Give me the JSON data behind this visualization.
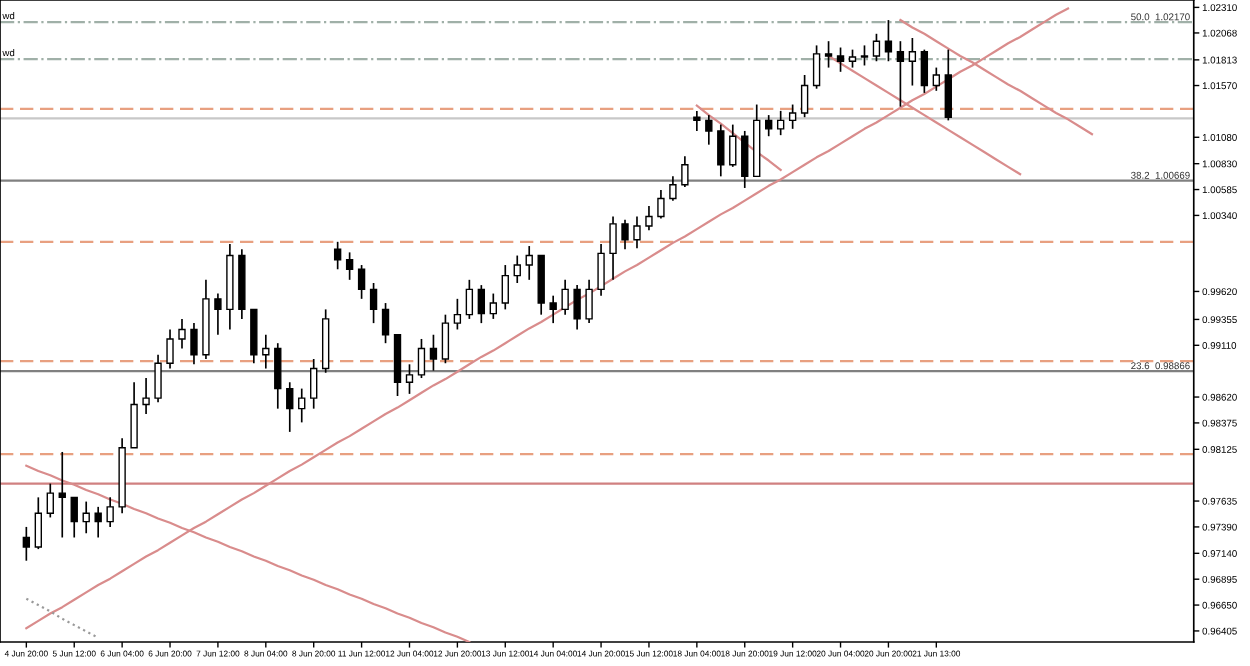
{
  "chart_data": {
    "type": "candlestick",
    "categories": [
      "4 Jun 20:00",
      null,
      null,
      null,
      "5 Jun 12:00",
      null,
      null,
      null,
      "6 Jun 04:00",
      null,
      null,
      null,
      "6 Jun 20:00",
      null,
      null,
      null,
      "7 Jun 12:00",
      null,
      null,
      null,
      "8 Jun 04:00",
      null,
      null,
      null,
      "8 Jun 20:00",
      null,
      null,
      null,
      "11 Jun 12:00",
      null,
      null,
      null,
      "12 Jun 04:00",
      null,
      null,
      null,
      "12 Jun 20:00",
      null,
      null,
      null,
      "13 Jun 12:00",
      null,
      null,
      null,
      "14 Jun 04:00",
      null,
      null,
      null,
      "14 Jun 20:00",
      null,
      null,
      null,
      "15 Jun 12:00",
      null,
      null,
      null,
      "18 Jun 04:00",
      null,
      null,
      null,
      "18 Jun 20:00",
      null,
      null,
      null,
      "19 Jun 12:00",
      null,
      null,
      null,
      "20 Jun 04:00",
      null,
      null,
      null,
      "20 Jun 20:00",
      null,
      null,
      null,
      "21 Jun 13:00",
      null,
      null,
      null,
      null,
      null,
      null,
      null,
      null,
      null,
      null,
      null,
      null,
      null,
      null,
      null,
      null,
      null,
      null,
      null,
      null,
      null
    ],
    "ohlc": [
      [
        0.9729,
        0.9739,
        0.9707,
        0.972
      ],
      [
        0.972,
        0.9767,
        0.9718,
        0.9752
      ],
      [
        0.9752,
        0.978,
        0.9748,
        0.9771
      ],
      [
        0.9771,
        0.981,
        0.9729,
        0.9767
      ],
      [
        0.9767,
        0.9767,
        0.9729,
        0.9744
      ],
      [
        0.9744,
        0.9763,
        0.9733,
        0.9752
      ],
      [
        0.9752,
        0.9758,
        0.9729,
        0.9744
      ],
      [
        0.9744,
        0.9767,
        0.9739,
        0.9758
      ],
      [
        0.9758,
        0.9823,
        0.9752,
        0.9814
      ],
      [
        0.9814,
        0.9876,
        0.9814,
        0.9855
      ],
      [
        0.9855,
        0.988,
        0.9846,
        0.9861
      ],
      [
        0.9861,
        0.9902,
        0.9857,
        0.9894
      ],
      [
        0.9894,
        0.9926,
        0.9889,
        0.9917
      ],
      [
        0.9917,
        0.9936,
        0.9908,
        0.9926
      ],
      [
        0.9926,
        0.9932,
        0.9893,
        0.9902
      ],
      [
        0.9902,
        0.9973,
        0.9898,
        0.9955
      ],
      [
        0.9955,
        0.996,
        0.9921,
        0.9945
      ],
      [
        0.9945,
        1.0007,
        0.9926,
        0.9996
      ],
      [
        0.9996,
        1.0002,
        0.9936,
        0.9945
      ],
      [
        0.9945,
        0.9945,
        0.9894,
        0.9902
      ],
      [
        0.9902,
        0.9921,
        0.9889,
        0.9908
      ],
      [
        0.9908,
        0.9913,
        0.9851,
        0.987
      ],
      [
        0.987,
        0.9876,
        0.9829,
        0.9851
      ],
      [
        0.9851,
        0.987,
        0.9838,
        0.9861
      ],
      [
        0.9861,
        0.9898,
        0.9851,
        0.9889
      ],
      [
        0.9889,
        0.9945,
        0.9885,
        0.9936
      ],
      [
        1.0002,
        1.0009,
        0.9983,
        0.9992
      ],
      [
        0.9992,
        0.9999,
        0.9973,
        0.9983
      ],
      [
        0.9983,
        0.9987,
        0.9955,
        0.9964
      ],
      [
        0.9964,
        0.997,
        0.9932,
        0.9945
      ],
      [
        0.9945,
        0.9951,
        0.9913,
        0.9921
      ],
      [
        0.9921,
        0.9921,
        0.9863,
        0.9876
      ],
      [
        0.9876,
        0.9893,
        0.9865,
        0.9883
      ],
      [
        0.9883,
        0.9917,
        0.988,
        0.9908
      ],
      [
        0.9908,
        0.9921,
        0.9887,
        0.9898
      ],
      [
        0.9898,
        0.994,
        0.9894,
        0.9932
      ],
      [
        0.9932,
        0.9955,
        0.9926,
        0.994
      ],
      [
        0.994,
        0.9973,
        0.9936,
        0.9964
      ],
      [
        0.9964,
        0.9968,
        0.9932,
        0.9941
      ],
      [
        0.9941,
        0.996,
        0.9936,
        0.9951
      ],
      [
        0.9951,
        0.9987,
        0.9945,
        0.9977
      ],
      [
        0.9977,
        0.9996,
        0.997,
        0.9987
      ],
      [
        0.9987,
        1.0005,
        0.9973,
        0.9996
      ],
      [
        0.9996,
        0.9996,
        0.994,
        0.9951
      ],
      [
        0.9951,
        0.9958,
        0.9932,
        0.9945
      ],
      [
        0.9945,
        0.9973,
        0.994,
        0.9964
      ],
      [
        0.9964,
        0.9968,
        0.9926,
        0.9936
      ],
      [
        0.9936,
        0.9973,
        0.9932,
        0.9964
      ],
      [
        0.9964,
        1.0007,
        0.9958,
        0.9998
      ],
      [
        0.9998,
        1.0033,
        0.9973,
        1.0026
      ],
      [
        1.0026,
        1.003,
        1.0002,
        1.0011
      ],
      [
        1.0011,
        1.0033,
        1.0003,
        1.0024
      ],
      [
        1.0024,
        1.0043,
        1.002,
        1.0033
      ],
      [
        1.0033,
        1.0058,
        1.0031,
        1.005
      ],
      [
        1.005,
        1.0071,
        1.0048,
        1.0063
      ],
      [
        1.0063,
        1.009,
        1.0061,
        1.0082
      ],
      [
        1.0127,
        1.0133,
        1.0114,
        1.0124
      ],
      [
        1.0124,
        1.0129,
        1.0101,
        1.0114
      ],
      [
        1.0114,
        1.012,
        1.0071,
        1.0082
      ],
      [
        1.0082,
        1.012,
        1.008,
        1.0109
      ],
      [
        1.0109,
        1.0114,
        1.006,
        1.0071
      ],
      [
        1.0071,
        1.0139,
        1.0071,
        1.0124
      ],
      [
        1.0124,
        1.0129,
        1.0109,
        1.0116
      ],
      [
        1.0116,
        1.0133,
        1.011,
        1.0124
      ],
      [
        1.0124,
        1.0139,
        1.0116,
        1.0131
      ],
      [
        1.0131,
        1.0167,
        1.0127,
        1.0157
      ],
      [
        1.0157,
        1.0195,
        1.0154,
        1.0187
      ],
      [
        1.0187,
        1.0199,
        1.0174,
        1.0185
      ],
      [
        1.0185,
        1.0193,
        1.017,
        1.018
      ],
      [
        1.018,
        1.0191,
        1.0174,
        1.0184
      ],
      [
        1.0184,
        1.0195,
        1.0176,
        1.0185
      ],
      [
        1.0185,
        1.0206,
        1.018,
        1.0199
      ],
      [
        1.0199,
        1.0219,
        1.018,
        1.0189
      ],
      [
        1.0189,
        1.0199,
        1.0137,
        1.018
      ],
      [
        1.018,
        1.0202,
        1.0157,
        1.0189
      ],
      [
        1.0189,
        1.0191,
        1.015,
        1.0157
      ],
      [
        1.0157,
        1.0174,
        1.0152,
        1.0167
      ],
      [
        1.0167,
        1.0191,
        1.0124,
        1.0127
      ],
      null,
      null,
      null,
      null,
      null,
      null,
      null,
      null,
      null,
      null,
      null,
      null,
      null,
      null,
      null,
      null,
      null,
      null,
      null,
      null
    ],
    "series": [
      {
        "type": "line",
        "color": "#d98c8c",
        "values": [
          0.9643,
          0.965,
          0.9657,
          0.9663,
          0.967,
          0.9677,
          0.9684,
          0.969,
          0.9697,
          0.9704,
          0.9711,
          0.9717,
          0.9724,
          0.9731,
          0.9738,
          0.9744,
          0.9751,
          0.9758,
          0.9765,
          0.9771,
          0.9778,
          0.9785,
          0.9792,
          0.9798,
          0.9805,
          0.9812,
          0.9819,
          0.9825,
          0.9832,
          0.9839,
          0.9846,
          0.9852,
          0.9859,
          0.9866,
          0.9873,
          0.9879,
          0.9886,
          0.9893,
          0.99,
          0.9906,
          0.9913,
          0.992,
          0.9927,
          0.9933,
          0.994,
          0.9947,
          0.9954,
          0.996,
          0.9967,
          0.9974,
          0.9981,
          0.9987,
          0.9994,
          1.0001,
          1.0008,
          1.0014,
          1.0021,
          1.0028,
          1.0035,
          1.0041,
          1.0048,
          1.0055,
          1.0062,
          1.0068,
          1.0075,
          1.0082,
          1.0089,
          1.0095,
          1.0102,
          1.0109,
          1.0116,
          1.0122,
          1.0129,
          1.0136,
          1.0143,
          1.0149,
          1.0156,
          1.0163,
          1.017,
          1.0176,
          1.0183,
          1.019,
          1.0197,
          1.0203,
          1.021,
          1.0217,
          1.0224,
          1.023,
          null,
          null,
          null,
          null,
          null,
          null,
          null,
          null,
          null,
          null
        ]
      },
      {
        "type": "line",
        "color": "#d98c8c",
        "values": [
          0.9797,
          0.9792,
          0.9788,
          0.9783,
          0.9779,
          0.9774,
          0.977,
          0.9765,
          0.9761,
          0.9756,
          0.9752,
          0.9747,
          0.9743,
          0.9738,
          0.9734,
          0.9729,
          0.9725,
          0.972,
          0.9716,
          0.9711,
          0.9707,
          0.9702,
          0.9698,
          0.9693,
          0.9689,
          0.9684,
          0.968,
          0.9675,
          0.9671,
          0.9666,
          0.9662,
          0.9657,
          0.9653,
          0.9648,
          0.9644,
          0.9639,
          0.9635,
          0.963,
          null,
          null,
          null,
          null,
          null,
          null,
          null,
          null,
          null,
          null,
          null,
          null,
          null,
          null,
          null,
          null,
          null,
          null,
          null,
          null,
          null,
          null,
          null,
          null,
          null,
          null,
          null,
          null,
          null,
          null,
          null,
          null,
          null,
          null,
          null,
          null,
          null,
          null,
          null,
          null,
          null,
          null,
          null,
          null,
          null,
          null,
          null,
          null,
          null,
          null,
          null,
          null,
          null,
          null,
          null,
          null,
          null,
          null,
          null,
          null
        ]
      },
      {
        "type": "line",
        "color": "#999999",
        "line_style": "dotted",
        "values": [
          0.9671,
          0.9665,
          0.9659,
          0.9652,
          0.9646,
          0.964,
          0.9634,
          null,
          null,
          null,
          null,
          null,
          null,
          null,
          null,
          null,
          null,
          null,
          null,
          null,
          null,
          null,
          null,
          null,
          null,
          null,
          null,
          null,
          null,
          null,
          null,
          null,
          null,
          null,
          null,
          null,
          null,
          null,
          null,
          null,
          null,
          null,
          null,
          null,
          null,
          null,
          null,
          null,
          null,
          null,
          null,
          null,
          null,
          null,
          null,
          null,
          null,
          null,
          null,
          null,
          null,
          null,
          null,
          null,
          null,
          null,
          null,
          null,
          null,
          null,
          null,
          null,
          null,
          null,
          null,
          null,
          null,
          null,
          null,
          null,
          null,
          null,
          null,
          null,
          null,
          null,
          null,
          null,
          null,
          null,
          null,
          null,
          null,
          null,
          null,
          null,
          null,
          null
        ]
      },
      {
        "type": "line",
        "color": "#d98c8c",
        "values": [
          null,
          null,
          null,
          null,
          null,
          null,
          null,
          null,
          null,
          null,
          null,
          null,
          null,
          null,
          null,
          null,
          null,
          null,
          null,
          null,
          null,
          null,
          null,
          null,
          null,
          null,
          null,
          null,
          null,
          null,
          null,
          null,
          null,
          null,
          null,
          null,
          null,
          null,
          null,
          null,
          null,
          null,
          null,
          null,
          null,
          null,
          null,
          null,
          null,
          null,
          null,
          null,
          null,
          null,
          null,
          null,
          1.0138,
          1.0129,
          1.0121,
          1.0112,
          1.0103,
          1.0094,
          1.0086,
          1.0077,
          null,
          null,
          null,
          null,
          null,
          null,
          null,
          null,
          null,
          null,
          null,
          null,
          null,
          null,
          null,
          null,
          null,
          null,
          null,
          null,
          null,
          null,
          null,
          null,
          null,
          null,
          null,
          null,
          null,
          null,
          null,
          null,
          null,
          null
        ]
      },
      {
        "type": "line",
        "color": "#d98c8c",
        "values": [
          null,
          null,
          null,
          null,
          null,
          null,
          null,
          null,
          null,
          null,
          null,
          null,
          null,
          null,
          null,
          null,
          null,
          null,
          null,
          null,
          null,
          null,
          null,
          null,
          null,
          null,
          null,
          null,
          null,
          null,
          null,
          null,
          null,
          null,
          null,
          null,
          null,
          null,
          null,
          null,
          null,
          null,
          null,
          null,
          null,
          null,
          null,
          null,
          null,
          null,
          null,
          null,
          null,
          null,
          null,
          null,
          null,
          null,
          null,
          null,
          null,
          null,
          null,
          null,
          null,
          null,
          null,
          null,
          null,
          null,
          null,
          null,
          null,
          1.0219,
          1.0212,
          1.0206,
          1.0199,
          1.0192,
          1.0185,
          1.0179,
          1.0172,
          1.0165,
          1.0158,
          1.0152,
          1.0145,
          1.0138,
          1.0131,
          1.0125,
          1.0118,
          1.0111,
          null,
          null,
          null,
          null,
          null,
          null,
          null,
          null
        ]
      },
      {
        "type": "line",
        "color": "#d98c8c",
        "values": [
          null,
          null,
          null,
          null,
          null,
          null,
          null,
          null,
          null,
          null,
          null,
          null,
          null,
          null,
          null,
          null,
          null,
          null,
          null,
          null,
          null,
          null,
          null,
          null,
          null,
          null,
          null,
          null,
          null,
          null,
          null,
          null,
          null,
          null,
          null,
          null,
          null,
          null,
          null,
          null,
          null,
          null,
          null,
          null,
          null,
          null,
          null,
          null,
          null,
          null,
          null,
          null,
          null,
          null,
          null,
          null,
          null,
          null,
          null,
          null,
          null,
          null,
          null,
          null,
          null,
          null,
          null,
          1.0185,
          1.0178,
          1.0171,
          1.0164,
          1.0157,
          1.015,
          1.0143,
          1.0136,
          1.0129,
          1.0122,
          1.0115,
          1.0108,
          1.0101,
          1.0094,
          1.0087,
          1.008,
          1.0073,
          null,
          null,
          null,
          null,
          null,
          null,
          null,
          null,
          null,
          null,
          null,
          null,
          null,
          null
        ]
      }
    ],
    "ref_lines": [
      {
        "axis": "y",
        "value": 1.0217,
        "label": "50.0  1.02170",
        "color": "#a0b0a8",
        "line_style": "dashdot"
      },
      {
        "axis": "y",
        "value": 1.0182,
        "color": "#a0b0a8",
        "line_style": "dashdot"
      },
      {
        "axis": "y",
        "value": 1.0135,
        "color": "#e8a080",
        "line_style": "dashed"
      },
      {
        "axis": "y",
        "value": 1.0126,
        "color": "#c8c8c8",
        "line_style": "solid"
      },
      {
        "axis": "y",
        "value": 1.00669,
        "label": "38.2  1.00669",
        "color": "#808080",
        "line_style": "solid"
      },
      {
        "axis": "y",
        "value": 1.0009,
        "color": "#e8a080",
        "line_style": "dashed"
      },
      {
        "axis": "y",
        "value": 0.9896,
        "color": "#e8a080",
        "line_style": "dashed"
      },
      {
        "axis": "y",
        "value": 0.98866,
        "label": "23.6  0.98866",
        "color": "#808080",
        "line_style": "solid"
      },
      {
        "axis": "y",
        "value": 0.9808,
        "color": "#e8a080",
        "line_style": "dashed"
      },
      {
        "axis": "y",
        "value": 0.978,
        "color": "#d08080",
        "line_style": "solid"
      }
    ],
    "annotations": [
      {
        "text": "wd",
        "y": 1.0218
      },
      {
        "text": "wd",
        "y": 1.0183
      }
    ],
    "ylim": [
      0.963,
      1.0238
    ],
    "yticks": [
      {
        "value": 1.0231,
        "label": "1.02310"
      },
      1.02068,
      1.01813,
      {
        "value": 1.0157,
        "label": "1.01570"
      },
      {
        "value": 1.0108,
        "label": "1.01080"
      },
      {
        "value": 1.0083,
        "label": "1.00830"
      },
      1.00585,
      {
        "value": 1.0034,
        "label": "1.00340"
      },
      {
        "value": 0.9962,
        "label": "0.99620"
      },
      0.99355,
      {
        "value": 0.9911,
        "label": "0.99110"
      },
      {
        "value": 0.9862,
        "label": "0.98620"
      },
      0.98375,
      0.98125,
      0.97635,
      {
        "value": 0.9739,
        "label": "0.97390"
      },
      {
        "value": 0.9714,
        "label": "0.97140"
      },
      0.96895,
      {
        "value": 0.9665,
        "label": "0.96650"
      },
      0.96405
    ]
  }
}
